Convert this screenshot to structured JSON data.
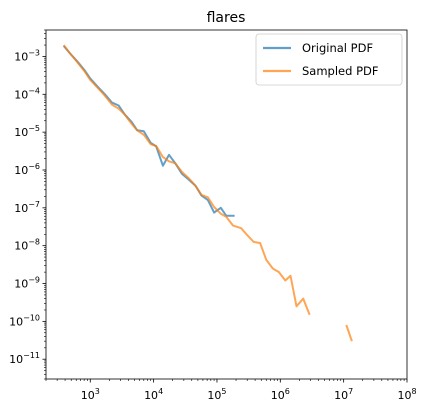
{
  "chart_data": {
    "type": "line",
    "title": "flares",
    "xlabel": "",
    "ylabel": "",
    "x_scale": "log",
    "y_scale": "log",
    "xlim": [
      200,
      100000000
    ],
    "ylim": [
      3e-12,
      0.005
    ],
    "grid": false,
    "legend_position": "top-right",
    "x_ticks": [
      {
        "value": 1000,
        "base": "10",
        "exp": "3"
      },
      {
        "value": 10000,
        "base": "10",
        "exp": "4"
      },
      {
        "value": 100000,
        "base": "10",
        "exp": "5"
      },
      {
        "value": 1000000,
        "base": "10",
        "exp": "6"
      },
      {
        "value": 10000000,
        "base": "10",
        "exp": "7"
      },
      {
        "value": 100000000,
        "base": "10",
        "exp": "8"
      }
    ],
    "y_ticks": [
      {
        "value": 0.001,
        "base": "10",
        "exp": "−3"
      },
      {
        "value": 0.0001,
        "base": "10",
        "exp": "−4"
      },
      {
        "value": 1e-05,
        "base": "10",
        "exp": "−5"
      },
      {
        "value": 1e-06,
        "base": "10",
        "exp": "−6"
      },
      {
        "value": 1e-07,
        "base": "10",
        "exp": "−7"
      },
      {
        "value": 1e-08,
        "base": "10",
        "exp": "−8"
      },
      {
        "value": 1e-09,
        "base": "10",
        "exp": "−9"
      },
      {
        "value": 1e-10,
        "base": "10",
        "exp": "−10"
      },
      {
        "value": 1e-11,
        "base": "10",
        "exp": "−11"
      }
    ],
    "series": [
      {
        "name": "Original PDF",
        "color": "#1f77b4",
        "segments": [
          [
            [
              380,
              0.0019
            ],
            [
              480,
              0.0012
            ],
            [
              620,
              0.00075
            ],
            [
              800,
              0.00045
            ],
            [
              1000,
              0.00026
            ],
            [
              1300,
              0.00016
            ],
            [
              1700,
              0.0001
            ],
            [
              2200,
              6.05e-05
            ],
            [
              2800,
              5.05e-05
            ],
            [
              3500,
              2.95e-05
            ],
            [
              4500,
              1.85e-05
            ],
            [
              5500,
              1.12e-05
            ],
            [
              7000,
              1.06e-05
            ],
            [
              9000,
              5.2e-06
            ],
            [
              11000,
              4.2e-06
            ],
            [
              14000,
              1.3e-06
            ],
            [
              17500,
              2.5e-06
            ],
            [
              22000,
              1.5e-06
            ],
            [
              28000,
              8e-07
            ],
            [
              36000,
              5.5e-07
            ],
            [
              46000,
              3.8e-07
            ],
            [
              57000,
              2.1e-07
            ],
            [
              72000,
              1.6e-07
            ],
            [
              90000,
              7.5e-08
            ],
            [
              115000,
              1e-07
            ],
            [
              140000,
              6.2e-08
            ],
            [
              190000,
              6.2e-08
            ]
          ]
        ]
      },
      {
        "name": "Sampled PDF",
        "color": "#ff7f0e",
        "segments": [
          [
            [
              380,
              0.002
            ],
            [
              480,
              0.0012
            ],
            [
              620,
              0.00072
            ],
            [
              800,
              0.00042
            ],
            [
              1000,
              0.00024
            ],
            [
              1300,
              0.00015
            ],
            [
              1700,
              9.2e-05
            ],
            [
              2200,
              5.35e-05
            ],
            [
              2800,
              4.2e-05
            ],
            [
              3500,
              2.95e-05
            ],
            [
              4500,
              1.65e-05
            ],
            [
              5500,
              1.12e-05
            ],
            [
              7000,
              8.5e-06
            ],
            [
              9000,
              4.8e-06
            ],
            [
              11000,
              4.3e-06
            ],
            [
              14000,
              2.2e-06
            ],
            [
              17500,
              1.7e-06
            ],
            [
              22000,
              1.5e-06
            ],
            [
              28000,
              8.9e-07
            ],
            [
              36000,
              6e-07
            ],
            [
              46000,
              3.8e-07
            ],
            [
              57000,
              2.2e-07
            ],
            [
              72000,
              1.9e-07
            ],
            [
              90000,
              1.05e-07
            ],
            [
              115000,
              7e-08
            ],
            [
              140000,
              5.8e-08
            ],
            [
              180000,
              3.4e-08
            ],
            [
              240000,
              2.9e-08
            ],
            [
              300000,
              1.9e-08
            ],
            [
              380000,
              1.25e-08
            ],
            [
              480000,
              1.18e-08
            ],
            [
              600000,
              4.2e-09
            ],
            [
              760000,
              2.5e-09
            ],
            [
              950000,
              2e-09
            ],
            [
              1200000,
              1.2e-09
            ],
            [
              1450000,
              1.6e-09
            ],
            [
              1800000,
              2.5e-10
            ],
            [
              2300000,
              4e-10
            ],
            [
              2900000,
              1.5e-10
            ]
          ],
          [
            [
              11000000,
              8e-11
            ],
            [
              13500000,
              3e-11
            ]
          ]
        ]
      }
    ]
  }
}
